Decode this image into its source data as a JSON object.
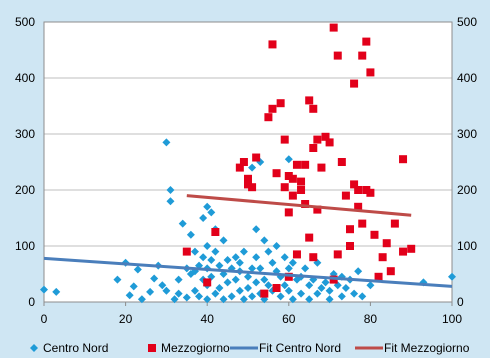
{
  "chart_data": {
    "type": "scatter",
    "title": "",
    "xlabel": "",
    "ylabel": "",
    "xlim": [
      0,
      100
    ],
    "ylim": [
      0,
      500
    ],
    "x_ticks": [
      0,
      20,
      40,
      60,
      80,
      100
    ],
    "y_ticks": [
      0,
      100,
      200,
      300,
      400,
      500
    ],
    "grid": "horizontal",
    "legend_position": "bottom",
    "series": [
      {
        "name": "Centro Nord",
        "kind": "scatter",
        "marker": "diamond",
        "color": "#1f9bd7",
        "points": [
          [
            0,
            22
          ],
          [
            3,
            18
          ],
          [
            18,
            40
          ],
          [
            20,
            70
          ],
          [
            21,
            12
          ],
          [
            22,
            28
          ],
          [
            23,
            58
          ],
          [
            24,
            5
          ],
          [
            26,
            18
          ],
          [
            27,
            42
          ],
          [
            28,
            65
          ],
          [
            29,
            30
          ],
          [
            30,
            20
          ],
          [
            30,
            285
          ],
          [
            31,
            200
          ],
          [
            31,
            180
          ],
          [
            32,
            5
          ],
          [
            33,
            15
          ],
          [
            33,
            40
          ],
          [
            34,
            140
          ],
          [
            35,
            60
          ],
          [
            35,
            8
          ],
          [
            36,
            120
          ],
          [
            36,
            50
          ],
          [
            37,
            90
          ],
          [
            37,
            55
          ],
          [
            37,
            20
          ],
          [
            38,
            65
          ],
          [
            38,
            10
          ],
          [
            39,
            150
          ],
          [
            39,
            80
          ],
          [
            39,
            40
          ],
          [
            40,
            170
          ],
          [
            40,
            100
          ],
          [
            40,
            60
          ],
          [
            40,
            30
          ],
          [
            40,
            5
          ],
          [
            41,
            160
          ],
          [
            41,
            75
          ],
          [
            41,
            45
          ],
          [
            42,
            130
          ],
          [
            42,
            90
          ],
          [
            42,
            15
          ],
          [
            43,
            65
          ],
          [
            43,
            25
          ],
          [
            44,
            110
          ],
          [
            44,
            50
          ],
          [
            44,
            5
          ],
          [
            45,
            75
          ],
          [
            45,
            35
          ],
          [
            46,
            60
          ],
          [
            46,
            10
          ],
          [
            47,
            80
          ],
          [
            47,
            40
          ],
          [
            48,
            70
          ],
          [
            48,
            20
          ],
          [
            48,
            55
          ],
          [
            49,
            90
          ],
          [
            49,
            5
          ],
          [
            50,
            45
          ],
          [
            50,
            210
          ],
          [
            50,
            25
          ],
          [
            51,
            60
          ],
          [
            51,
            240
          ],
          [
            51,
            10
          ],
          [
            52,
            130
          ],
          [
            52,
            80
          ],
          [
            52,
            35
          ],
          [
            53,
            250
          ],
          [
            53,
            60
          ],
          [
            53,
            15
          ],
          [
            54,
            110
          ],
          [
            54,
            40
          ],
          [
            54,
            5
          ],
          [
            55,
            90
          ],
          [
            55,
            30
          ],
          [
            56,
            70
          ],
          [
            56,
            20
          ],
          [
            57,
            100
          ],
          [
            57,
            55
          ],
          [
            58,
            45
          ],
          [
            58,
            10
          ],
          [
            59,
            80
          ],
          [
            59,
            30
          ],
          [
            60,
            255
          ],
          [
            60,
            60
          ],
          [
            60,
            20
          ],
          [
            61,
            70
          ],
          [
            61,
            5
          ],
          [
            62,
            40
          ],
          [
            63,
            45
          ],
          [
            63,
            15
          ],
          [
            64,
            60
          ],
          [
            65,
            30
          ],
          [
            65,
            5
          ],
          [
            66,
            40
          ],
          [
            67,
            70
          ],
          [
            67,
            15
          ],
          [
            68,
            25
          ],
          [
            69,
            35
          ],
          [
            70,
            20
          ],
          [
            70,
            5
          ],
          [
            71,
            50
          ],
          [
            72,
            30
          ],
          [
            73,
            10
          ],
          [
            73,
            45
          ],
          [
            74,
            25
          ],
          [
            75,
            40
          ],
          [
            76,
            15
          ],
          [
            77,
            55
          ],
          [
            78,
            10
          ],
          [
            80,
            30
          ],
          [
            93,
            35
          ],
          [
            100,
            45
          ]
        ]
      },
      {
        "name": "Mezzogiorno",
        "kind": "scatter",
        "marker": "square",
        "color": "#e2001a",
        "points": [
          [
            35,
            90
          ],
          [
            40,
            35
          ],
          [
            42,
            125
          ],
          [
            48,
            240
          ],
          [
            49,
            250
          ],
          [
            50,
            220
          ],
          [
            50,
            210
          ],
          [
            51,
            205
          ],
          [
            52,
            258
          ],
          [
            55,
            330
          ],
          [
            56,
            345
          ],
          [
            56,
            460
          ],
          [
            57,
            230
          ],
          [
            58,
            355
          ],
          [
            59,
            290
          ],
          [
            59,
            205
          ],
          [
            60,
            225
          ],
          [
            60,
            160
          ],
          [
            61,
            220
          ],
          [
            61,
            190
          ],
          [
            62,
            245
          ],
          [
            62,
            85
          ],
          [
            63,
            215
          ],
          [
            63,
            200
          ],
          [
            64,
            175
          ],
          [
            64,
            245
          ],
          [
            65,
            115
          ],
          [
            65,
            360
          ],
          [
            66,
            345
          ],
          [
            66,
            275
          ],
          [
            67,
            290
          ],
          [
            67,
            165
          ],
          [
            68,
            240
          ],
          [
            69,
            295
          ],
          [
            70,
            285
          ],
          [
            71,
            40
          ],
          [
            71,
            490
          ],
          [
            72,
            85
          ],
          [
            72,
            440
          ],
          [
            73,
            250
          ],
          [
            74,
            190
          ],
          [
            75,
            130
          ],
          [
            75,
            100
          ],
          [
            76,
            390
          ],
          [
            76,
            210
          ],
          [
            77,
            200
          ],
          [
            77,
            170
          ],
          [
            78,
            440
          ],
          [
            78,
            140
          ],
          [
            79,
            200
          ],
          [
            79,
            465
          ],
          [
            80,
            410
          ],
          [
            80,
            195
          ],
          [
            81,
            120
          ],
          [
            82,
            45
          ],
          [
            83,
            80
          ],
          [
            84,
            105
          ],
          [
            85,
            55
          ],
          [
            86,
            140
          ],
          [
            88,
            90
          ],
          [
            88,
            255
          ],
          [
            90,
            95
          ],
          [
            54,
            15
          ],
          [
            57,
            25
          ],
          [
            60,
            45
          ],
          [
            66,
            80
          ]
        ]
      },
      {
        "name": "Fit Centro Nord",
        "kind": "line",
        "color": "#4a7ebb",
        "points": [
          [
            0,
            78
          ],
          [
            100,
            28
          ]
        ]
      },
      {
        "name": "Fit Mezzogiorno",
        "kind": "line",
        "color": "#be4b48",
        "points": [
          [
            35,
            190
          ],
          [
            90,
            155
          ]
        ]
      }
    ],
    "colors": {
      "background": "#cfe6f3",
      "plot_background": "#ffffff",
      "gridline": "#bfbfbf"
    }
  }
}
